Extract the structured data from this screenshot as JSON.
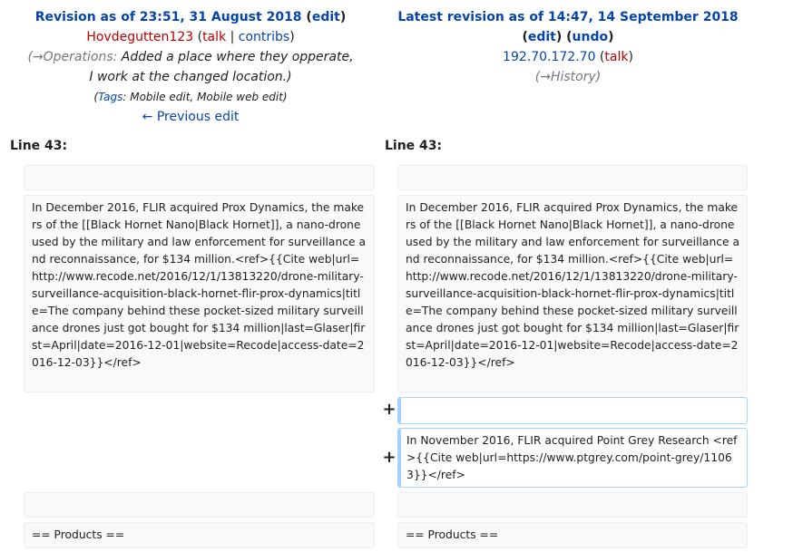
{
  "left_header": {
    "title_prefix": "Revision as of 23:51, 31 August 2018",
    "open_paren": " (",
    "edit_link": "edit",
    "close_paren": ")",
    "user": "Hovdegutten123",
    "talk_open": " (",
    "talk": "talk",
    "sep": " | ",
    "contribs": "contribs",
    "talk_close": ")",
    "summary_arrow": "(→Operations:",
    "summary_text": " Added a place where they opperate, I work at the changed location.)",
    "tags_open": "(",
    "tags_link": "Tags",
    "tags_text": ": Mobile edit, Mobile web edit)",
    "prev_edit": "← Previous edit"
  },
  "right_header": {
    "title": "Latest revision as of 14:47, 14 September 2018",
    "edit_open": "(",
    "edit_link": "edit",
    "edit_mid": ") (",
    "undo_link": "undo",
    "edit_close": ")",
    "ip": "192.70.172.70",
    "talk_open": " (",
    "talk": "talk",
    "talk_close": ")",
    "history_open": "(→",
    "history_link": "History",
    "history_close": ")"
  },
  "diff": {
    "left_line": "Line 43:",
    "right_line": "Line 43:",
    "paragraph_left": "In December 2016, FLIR acquired Prox Dynamics, the makers of the [[Black Hornet Nano|Black Hornet]], a nano-drone used by the military and law enforcement for surveillance and reconnaissance, for $134 million.<ref>{{Cite web|url=http://www.recode.net/2016/12/1/13813220/drone-military-surveillance-acquisition-black-hornet-flir-prox-dynamics|title=The company behind these pocket-sized military surveillance drones just got bought for $134 million|last=Glaser|first=April|date=2016-12-01|website=Recode|access-date=2016-12-03}}</ref>",
    "paragraph_right": "In December 2016, FLIR acquired Prox Dynamics, the makers of the [[Black Hornet Nano|Black Hornet]], a nano-drone used by the military and law enforcement for surveillance and reconnaissance, for $134 million.<ref>{{Cite web|url=http://www.recode.net/2016/12/1/13813220/drone-military-surveillance-acquisition-black-hornet-flir-prox-dynamics|title=The company behind these pocket-sized military surveillance drones just got bought for $134 million|last=Glaser|first=April|date=2016-12-01|website=Recode|access-date=2016-12-03}}</ref>",
    "added_marker": "+",
    "added_marker_2": "+",
    "added_text": "In November 2016, FLIR acquired Point Grey Research <ref>{{Cite web|url=https://www.ptgrey.com/point-grey/11063}}</ref>",
    "products_left": "== Products ==",
    "products_right": "== Products =="
  }
}
